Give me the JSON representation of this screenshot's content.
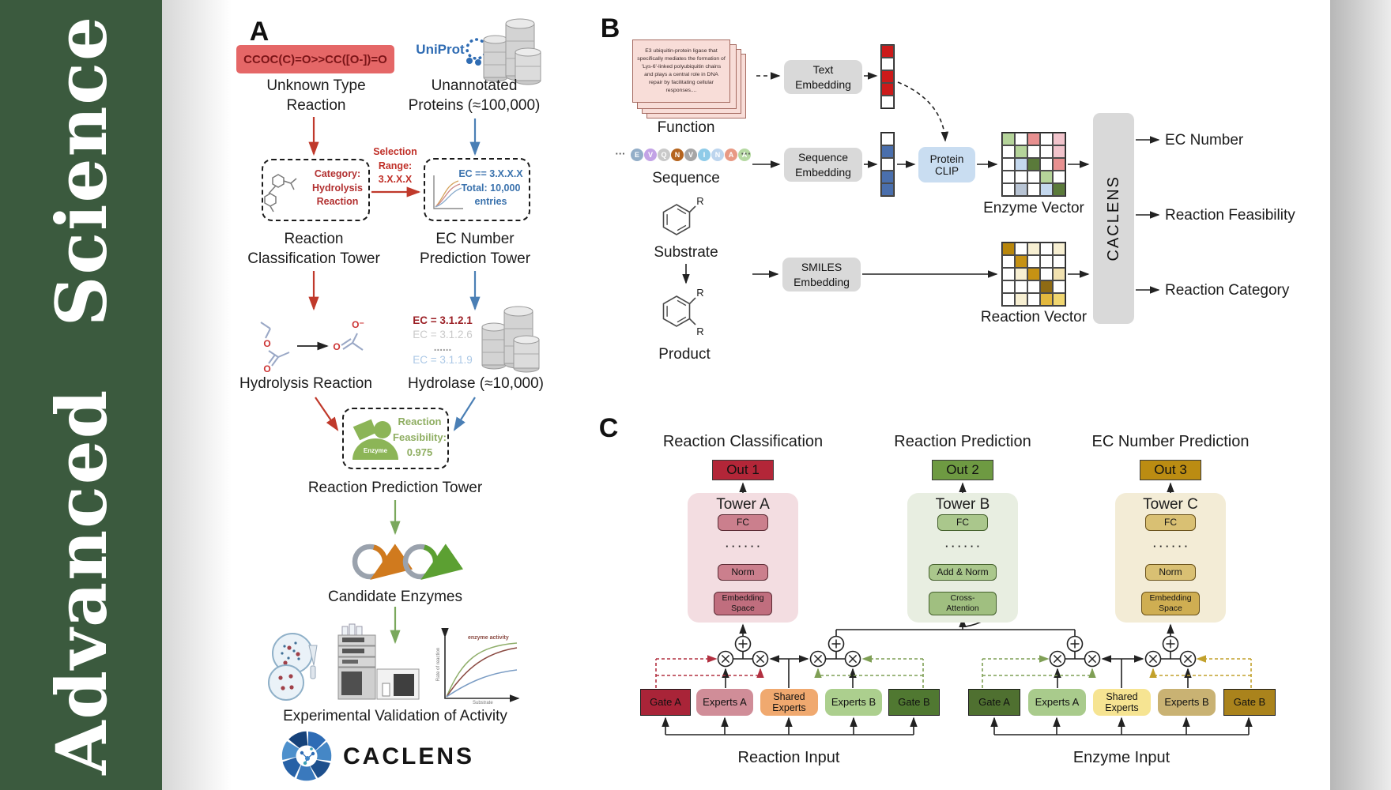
{
  "journal": {
    "name": "Advanced  Science",
    "sidebar_color": "#3b5a3e"
  },
  "colors": {
    "arrow_red": "#c0392b",
    "arrow_blue": "#4a7fb5",
    "arrow_green": "#7aa85c",
    "uniprot_blue": "#2f6cb3",
    "gate_red_dash": "#b23040",
    "gate_green_dash": "#7f9f55",
    "gate_gold_dash": "#c2a12c"
  },
  "panel_a": {
    "label": "A",
    "smiles": "CCOC(C)=O>>CC([O-])=O",
    "unknown_type": "Unknown Type\nReaction",
    "uniprot": "UniProt",
    "unannotated": "Unannotated\nProteins (≈100,000)",
    "category_box": "Category:\nHydrolysis\nReaction",
    "selection": "Selection\nRange:\n3.X.X.X",
    "ec_box": "EC == 3.X.X.X\nTotal: 10,000\nentries",
    "classification_tower": "Reaction\nClassification Tower",
    "ec_tower": "EC Number\nPrediction Tower",
    "hydrolysis": "Hydrolysis Reaction",
    "hydrolase": "Hydrolase (≈10,000)",
    "ec_list": [
      {
        "text": "EC = 3.1.2.1",
        "color": "#9c2127"
      },
      {
        "text": "EC = 3.1.2.6",
        "color": "#c9c9c9"
      },
      {
        "text": "......",
        "color": "#9a9a9a"
      },
      {
        "text": "EC = 3.1.1.9",
        "color": "#abc8e6"
      }
    ],
    "enzyme": "Enzyme",
    "feasibility": "Reaction\nFeasibility:\n0.975",
    "prediction_tower": "Reaction Prediction Tower",
    "candidate_enzymes": "Candidate Enzymes",
    "validation": "Experimental Validation of Activity",
    "graph": {
      "ylabel": "Rate of reaction",
      "xlabel": "Substrate",
      "legend": "enzyme activity"
    },
    "logo": "CACLENS",
    "atom_o": "O",
    "atom_o_minus": "O⁻"
  },
  "panel_b": {
    "label": "B",
    "function_text": "E3 ubiquitin-protein ligase that specifically mediates the formation of 'Lys-6'-linked polyubiquitin chains and plays a central role in DNA repair by facilitating cellular responses....",
    "function": "Function",
    "sequence": "Sequence",
    "ellipsis": "···",
    "residues": [
      {
        "letter": "E",
        "color": "#93aec8"
      },
      {
        "letter": "V",
        "color": "#c3a3e6"
      },
      {
        "letter": "Q",
        "color": "#c9c9c9"
      },
      {
        "letter": "N",
        "color": "#b5641e"
      },
      {
        "letter": "V",
        "color": "#a6a6a6"
      },
      {
        "letter": "I",
        "color": "#8fcbe8"
      },
      {
        "letter": "N",
        "color": "#bdd5ee"
      },
      {
        "letter": "A",
        "color": "#e89a85"
      },
      {
        "letter": "A",
        "color": "#b5d9a2"
      }
    ],
    "substrate": "Substrate",
    "product": "Product",
    "r_group": "R",
    "text_embedding": "Text\nEmbedding",
    "sequence_embedding": "Sequence\nEmbedding",
    "smiles_embedding": "SMILES\nEmbedding",
    "protein_clip": "Protein\nCLIP",
    "enzyme_vector": "Enzyme Vector",
    "reaction_vector": "Reaction Vector",
    "caclens": "CACLENS",
    "outputs": [
      "EC Number",
      "Reaction Feasibility",
      "Reaction Category"
    ],
    "text_vector_cells": [
      "#cc1a1a",
      "#ffffff",
      "#cc1a1a",
      "#cc1a1a",
      "#ffffff"
    ],
    "sequence_vector_cells": [
      "#ffffff",
      "#4a6fad",
      "#ffffff",
      "#4a6fad",
      "#4a6fad"
    ],
    "enzyme_matrix": [
      [
        "#b5d49a",
        "#ffffff",
        "#e89090",
        "#ffffff",
        "#f2c4cc"
      ],
      [
        "#ffffff",
        "#b5d49a",
        "#ffffff",
        "#ffffff",
        "#f2c4cc"
      ],
      [
        "#ffffff",
        "#c4d8ee",
        "#5a7a3a",
        "#ffffff",
        "#e89090"
      ],
      [
        "#ffffff",
        "#ffffff",
        "#ffffff",
        "#b5d49a",
        "#ffffff"
      ],
      [
        "#ffffff",
        "#b8c4d4",
        "#ffffff",
        "#c4d8ee",
        "#5a7a3a"
      ]
    ],
    "reaction_matrix": [
      [
        "#b8860b",
        "#ffffff",
        "#f7efd2",
        "#ffffff",
        "#f7efd2"
      ],
      [
        "#ffffff",
        "#c69214",
        "#ffffff",
        "#ffffff",
        "#ffffff"
      ],
      [
        "#ffffff",
        "#f7efd2",
        "#c69214",
        "#ffffff",
        "#f2e2b0"
      ],
      [
        "#ffffff",
        "#ffffff",
        "#ffffff",
        "#8f6b14",
        "#ffffff"
      ],
      [
        "#ffffff",
        "#f7efd2",
        "#ffffff",
        "#e3b83e",
        "#f0d670"
      ]
    ]
  },
  "panel_c": {
    "label": "C",
    "headers": [
      "Reaction Classification",
      "Reaction Prediction",
      "EC Number Prediction"
    ],
    "outs": [
      {
        "text": "Out 1",
        "bg": "#b32638"
      },
      {
        "text": "Out 2",
        "bg": "#6e9a42"
      },
      {
        "text": "Out 3",
        "bg": "#bb8c12"
      }
    ],
    "dots": "· · · · · ·",
    "towers": [
      {
        "title": "Tower A",
        "fc": "FC",
        "mid": "Norm",
        "base": "Embedding\nSpace",
        "panel_bg": "#f3dde1",
        "box_bg": "#cb7f8d",
        "base_bg": "#c06e7e",
        "border": "#5a2a33"
      },
      {
        "title": "Tower B",
        "fc": "FC",
        "mid": "Add & Norm",
        "base": "Cross-\nAttention",
        "panel_bg": "#e8eee1",
        "box_bg": "#aac78c",
        "base_bg": "#a0bf80",
        "border": "#44602c"
      },
      {
        "title": "Tower C",
        "fc": "FC",
        "mid": "Norm",
        "base": "Embedding\nSpace",
        "panel_bg": "#f3ecd6",
        "box_bg": "#d9c073",
        "base_bg": "#cfae52",
        "border": "#6a521a"
      }
    ],
    "moe": [
      {
        "label": "Reaction Input",
        "boxes": [
          {
            "text": "Gate A",
            "bg": "#a92438"
          },
          {
            "text": "Experts A",
            "bg": "#d08d98"
          },
          {
            "text": "Shared\nExperts",
            "bg": "#f0a96f"
          },
          {
            "text": "Experts B",
            "bg": "#accf8e"
          },
          {
            "text": "Gate B",
            "bg": "#507831"
          }
        ]
      },
      {
        "label": "Enzyme Input",
        "boxes": [
          {
            "text": "Gate A",
            "bg": "#4f7030"
          },
          {
            "text": "Experts A",
            "bg": "#a9cb8c"
          },
          {
            "text": "Shared\nExperts",
            "bg": "#f6e492"
          },
          {
            "text": "Experts B",
            "bg": "#c9b273"
          },
          {
            "text": "Gate B",
            "bg": "#aa831c"
          }
        ]
      }
    ]
  }
}
